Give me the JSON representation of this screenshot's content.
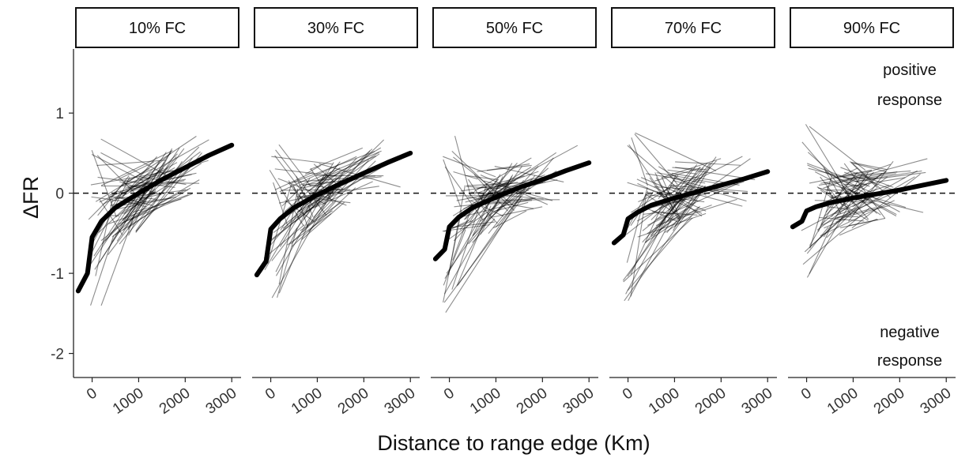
{
  "chart_data": {
    "type": "line",
    "xlabel": "Distance to range edge (Km)",
    "ylabel": "ΔFR",
    "x_ticks": [
      0,
      1000,
      2000,
      3000
    ],
    "y_ticks": [
      1,
      0,
      -1,
      -2
    ],
    "xlim": [
      -400,
      3200
    ],
    "ylim": [
      -2.3,
      1.8
    ],
    "reference_line": {
      "y": 0,
      "style": "dashed"
    },
    "annotations": {
      "top": [
        "positive",
        "response"
      ],
      "bottom": [
        "negative",
        "response"
      ]
    },
    "panels": [
      {
        "label": "10% FC",
        "fit": {
          "x": [
            -300,
            -100,
            0,
            200,
            500,
            1000,
            1500,
            2000,
            2500,
            3000
          ],
          "y": [
            -1.22,
            -1.0,
            -0.55,
            -0.35,
            -0.18,
            0.0,
            0.17,
            0.32,
            0.47,
            0.6
          ]
        },
        "intercept": -0.6,
        "slope": 0.0004
      },
      {
        "label": "30% FC",
        "fit": {
          "x": [
            -300,
            -100,
            0,
            200,
            500,
            1000,
            1500,
            2000,
            2500,
            3000
          ],
          "y": [
            -1.02,
            -0.85,
            -0.45,
            -0.32,
            -0.18,
            -0.02,
            0.12,
            0.25,
            0.38,
            0.5
          ]
        },
        "intercept": -0.45,
        "slope": 0.00033
      },
      {
        "label": "50% FC",
        "fit": {
          "x": [
            -300,
            -100,
            0,
            200,
            500,
            1000,
            1500,
            2000,
            2500,
            3000
          ],
          "y": [
            -0.82,
            -0.7,
            -0.42,
            -0.3,
            -0.18,
            -0.05,
            0.07,
            0.17,
            0.28,
            0.38
          ]
        },
        "intercept": -0.35,
        "slope": 0.00024
      },
      {
        "label": "70% FC",
        "fit": {
          "x": [
            -300,
            -100,
            0,
            200,
            500,
            1000,
            1500,
            2000,
            2500,
            3000
          ],
          "y": [
            -0.62,
            -0.52,
            -0.32,
            -0.24,
            -0.15,
            -0.06,
            0.02,
            0.1,
            0.18,
            0.27
          ]
        },
        "intercept": -0.25,
        "slope": 0.00015
      },
      {
        "label": "90% FC",
        "fit": {
          "x": [
            -300,
            -100,
            0,
            200,
            500,
            1000,
            1500,
            2000,
            2500,
            3000
          ],
          "y": [
            -0.42,
            -0.35,
            -0.22,
            -0.17,
            -0.12,
            -0.06,
            -0.01,
            0.04,
            0.1,
            0.16
          ]
        },
        "intercept": -0.15,
        "slope": 8e-05
      }
    ]
  }
}
